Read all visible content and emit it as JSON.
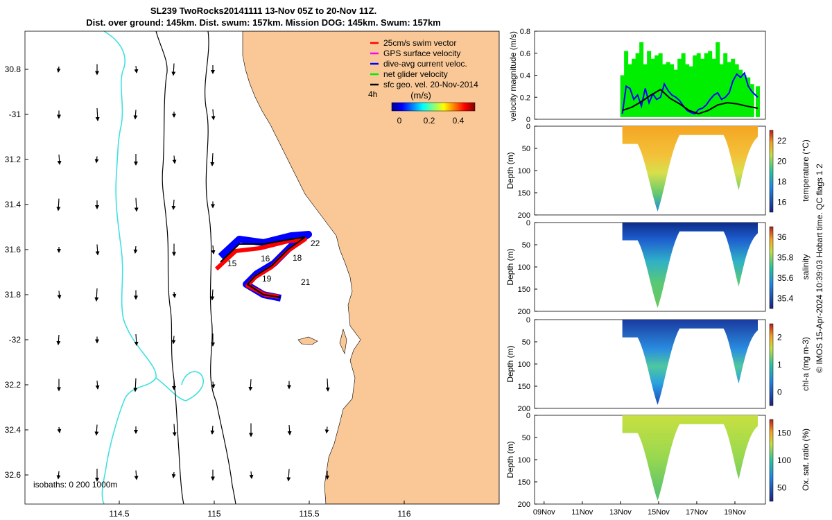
{
  "title": {
    "line1": "SL239 TwoRocks20141111 13-Nov 05Z to 20-Nov 11Z.",
    "line2": "Dist. over ground: 145km. Dist. swum: 157km. Mission DOG: 145km. Swum: 157km"
  },
  "map": {
    "legend": [
      {
        "label": "25cm/s swim vector",
        "color": "#ff0000"
      },
      {
        "label": "GPS surface velocity",
        "color": "#ff00ff"
      },
      {
        "label": "dive-avg current veloc.",
        "color": "#0000ff"
      },
      {
        "label": "net glider velocity",
        "color": "#00ee00"
      },
      {
        "label": "sfc geo. vel. 20-Nov-2014",
        "color": "#000000"
      }
    ],
    "lag_label": "4h",
    "colorbar": {
      "unit": "(m/s)",
      "ticks": [
        "0",
        "0.2",
        "0.4"
      ]
    },
    "lat_ticks": [
      "30.8",
      "-31",
      "31.2",
      "31.4",
      "31.6",
      "31.8",
      "-32",
      "32.2",
      "32.4",
      "32.6"
    ],
    "lon_ticks": [
      "114.5",
      "115",
      "115.5",
      "116"
    ],
    "isobaths_label": "isobaths: 0   200  1000m",
    "day_labels": [
      "15",
      "16",
      "18",
      "19",
      "21",
      "22"
    ],
    "colors": {
      "land": "#f9c896",
      "shelf_isobath": "#40e0e0",
      "glider_track": "#0000ff",
      "swim": "#ff0000"
    }
  },
  "chart_data": [
    {
      "type": "line",
      "ylabel": "velocity magnitude (m/s)",
      "ylim": [
        0,
        0.8
      ],
      "yticks": [
        "0",
        "0.2",
        "0.4",
        "0.6",
        "0.8"
      ],
      "x_start_day": 13.1,
      "series": [
        {
          "name": "net glider velocity",
          "color": "#00ee00",
          "x": [
            13.1,
            13.3,
            13.5,
            13.7,
            13.9,
            14.1,
            14.3,
            14.5,
            14.7,
            14.9,
            15.1,
            15.3,
            15.5,
            15.7,
            15.9,
            16.1,
            16.3,
            16.5,
            16.7,
            16.9,
            17.1,
            17.3,
            17.5,
            17.7,
            17.9,
            18.1,
            18.3,
            18.5,
            18.7,
            18.9,
            19.1,
            19.3,
            19.5,
            19.7,
            19.9,
            20.2
          ],
          "values": [
            0.4,
            0.62,
            0.5,
            0.55,
            0.6,
            0.7,
            0.5,
            0.62,
            0.55,
            0.58,
            0.6,
            0.5,
            0.52,
            0.5,
            0.45,
            0.55,
            0.6,
            0.5,
            0.48,
            0.58,
            0.6,
            0.55,
            0.6,
            0.62,
            0.55,
            0.7,
            0.5,
            0.6,
            0.52,
            0.55,
            0.5,
            0.45,
            0.4,
            0.38,
            0.32,
            0.3
          ]
        },
        {
          "name": "dive-avg current veloc.",
          "color": "#0000ff",
          "x": [
            13.1,
            13.3,
            13.5,
            13.7,
            13.9,
            14.1,
            14.3,
            14.5,
            14.7,
            14.9,
            15.1,
            15.3,
            15.5,
            15.7,
            15.9,
            16.1,
            16.3,
            16.5,
            16.7,
            16.9,
            17.1,
            17.3,
            17.5,
            17.7,
            17.9,
            18.1,
            18.3,
            18.5,
            18.7,
            18.9,
            19.1,
            19.3,
            19.5,
            19.7,
            19.9,
            20.2
          ],
          "values": [
            0.05,
            0.3,
            0.28,
            0.18,
            0.22,
            0.12,
            0.28,
            0.15,
            0.23,
            0.18,
            0.2,
            0.32,
            0.26,
            0.22,
            0.2,
            0.17,
            0.12,
            0.08,
            0.06,
            0.05,
            0.09,
            0.1,
            0.13,
            0.18,
            0.22,
            0.24,
            0.18,
            0.2,
            0.24,
            0.35,
            0.41,
            0.38,
            0.42,
            0.3,
            0.25,
            0.2
          ]
        },
        {
          "name": "sfc geo. vel.",
          "color": "#000000",
          "x": [
            13.1,
            13.6,
            14.1,
            14.6,
            15.1,
            15.6,
            16.1,
            16.6,
            17.1,
            17.6,
            18.1,
            18.6,
            19.1,
            19.6,
            20.2
          ],
          "values": [
            0.08,
            0.11,
            0.16,
            0.22,
            0.27,
            0.19,
            0.14,
            0.08,
            0.05,
            0.08,
            0.13,
            0.15,
            0.14,
            0.12,
            0.1
          ]
        }
      ]
    },
    {
      "type": "heatmap",
      "variable": "temperature",
      "clabel": "temperature (°C)",
      "cticks": [
        "16",
        "18",
        "20",
        "22"
      ],
      "yticks": [
        "0",
        "50",
        "100",
        "150",
        "200"
      ],
      "ylabel": "Depth (m)",
      "surface_value": "warm (~21°C)",
      "deep_value": "cool (~17°C)"
    },
    {
      "type": "heatmap",
      "variable": "salinity",
      "clabel": "salinity",
      "cticks": [
        "35.4",
        "35.6",
        "35.8",
        "36"
      ],
      "yticks": [
        "0",
        "50",
        "100",
        "150",
        "200"
      ],
      "ylabel": "Depth (m)"
    },
    {
      "type": "heatmap",
      "variable": "chl-a",
      "clabel": "chl-a (mg m-3)",
      "cticks": [
        "0",
        "1",
        "2"
      ],
      "yticks": [
        "0",
        "50",
        "100",
        "150",
        "200"
      ],
      "ylabel": "Depth (m)"
    },
    {
      "type": "heatmap",
      "variable": "oxygen",
      "clabel": "Ox. sat. ratio (%)",
      "cticks": [
        "50",
        "100",
        "150"
      ],
      "yticks": [
        "0",
        "50",
        "100",
        "150",
        "200"
      ],
      "ylabel": "Depth (m)"
    }
  ],
  "time_axis": {
    "ticks": [
      "09Nov",
      "11Nov",
      "13Nov",
      "15Nov",
      "17Nov",
      "19Nov"
    ]
  },
  "side_note": "© IMOS 15-Apr-2024 10:39:03 Hobart time. QC flags 1  2"
}
